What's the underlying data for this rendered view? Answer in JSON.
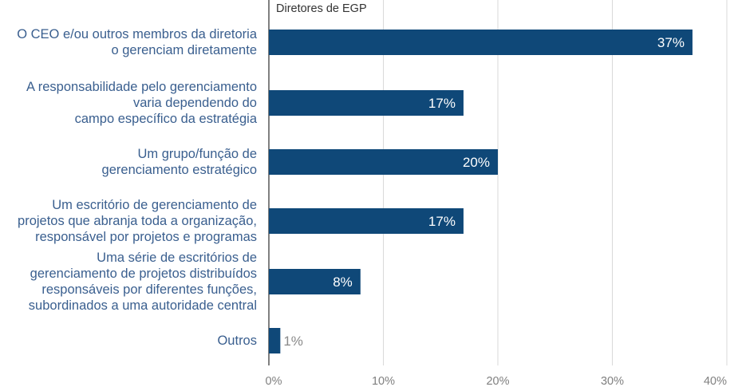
{
  "chart_data": {
    "type": "bar",
    "orientation": "horizontal",
    "series_title": "Diretores de EGP",
    "categories": [
      "O CEO e/ou outros membros da diretoria\no gerenciam diretamente",
      "A responsabilidade pelo gerenciamento\nvaria dependendo do\ncampo específico da estratégia",
      "Um grupo/função de\ngerenciamento estratégico",
      "Um escritório de gerenciamento de\nprojetos que abranja toda a organização,\nresponsável por projetos e programas",
      "Uma série de escritórios de\ngerenciamento de projetos distribuídos\nresponsáveis por diferentes funções,\nsubordinados a uma autoridade central",
      "Outros"
    ],
    "values": [
      37,
      17,
      20,
      17,
      8,
      1
    ],
    "value_labels": [
      "37%",
      "17%",
      "20%",
      "17%",
      "8%",
      "1%"
    ],
    "xlim": [
      0,
      40
    ],
    "xticks": [
      0,
      10,
      20,
      30,
      40
    ],
    "xtick_labels": [
      "0%",
      "10%",
      "20%",
      "30%",
      "40%"
    ],
    "grid": true,
    "colors": {
      "bar": "#0f4878",
      "label_inside": "#ffffff",
      "label_outside": "#8a8a8a",
      "category_text": "#3a5f8f",
      "grid": "#d9d9d9",
      "axis": "#000000"
    }
  }
}
